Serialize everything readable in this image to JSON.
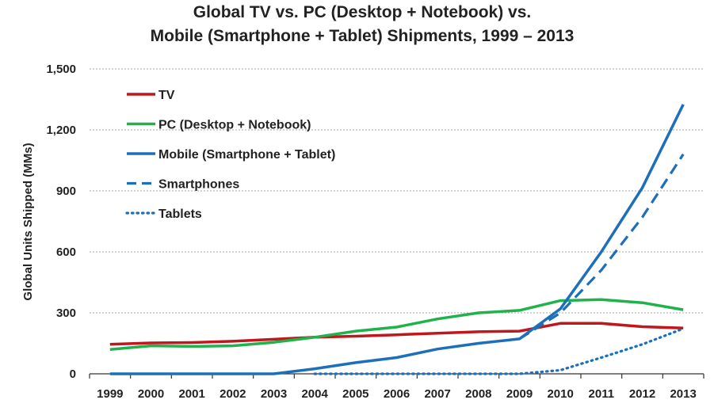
{
  "chart_data": {
    "type": "line",
    "title": [
      "Global TV vs. PC (Desktop + Notebook) vs.",
      "Mobile (Smartphone + Tablet) Shipments, 1999 – 2013"
    ],
    "xlabel": "",
    "ylabel": "Global Units Shipped (MMs)",
    "ylim": [
      0,
      1500
    ],
    "yticks": [
      0,
      300,
      600,
      900,
      1200,
      1500
    ],
    "ytick_labels": [
      "0",
      "300",
      "600",
      "900",
      "1,200",
      "1,500"
    ],
    "categories": [
      "1999",
      "2000",
      "2001",
      "2002",
      "2003",
      "2004",
      "2005",
      "2006",
      "2007",
      "2008",
      "2009",
      "2010",
      "2011",
      "2012",
      "2013"
    ],
    "grid": true,
    "legend_position": "top-left",
    "series": [
      {
        "name": "TV",
        "color": "#c0171d",
        "style": "solid",
        "values": [
          145,
          152,
          154,
          160,
          170,
          180,
          185,
          192,
          200,
          207,
          210,
          248,
          248,
          232,
          225
        ]
      },
      {
        "name": "PC (Desktop + Notebook)",
        "color": "#20b24b",
        "style": "solid",
        "values": [
          120,
          138,
          135,
          138,
          155,
          180,
          210,
          230,
          270,
          300,
          312,
          360,
          365,
          350,
          315
        ]
      },
      {
        "name": "Mobile (Smartphone + Tablet)",
        "color": "#1e6fba",
        "style": "solid",
        "values": [
          0,
          0,
          0,
          0,
          0,
          25,
          55,
          80,
          122,
          150,
          172,
          320,
          600,
          915,
          1325
        ]
      },
      {
        "name": "Smartphones",
        "color": "#1e6fba",
        "style": "dashed",
        "values": [
          null,
          null,
          null,
          null,
          null,
          null,
          null,
          null,
          null,
          null,
          172,
          300,
          510,
          770,
          1080
        ]
      },
      {
        "name": "Tablets",
        "color": "#1e6fba",
        "style": "dotted",
        "values": [
          null,
          null,
          null,
          null,
          null,
          0,
          0,
          0,
          0,
          0,
          0,
          18,
          80,
          145,
          222
        ]
      }
    ]
  }
}
